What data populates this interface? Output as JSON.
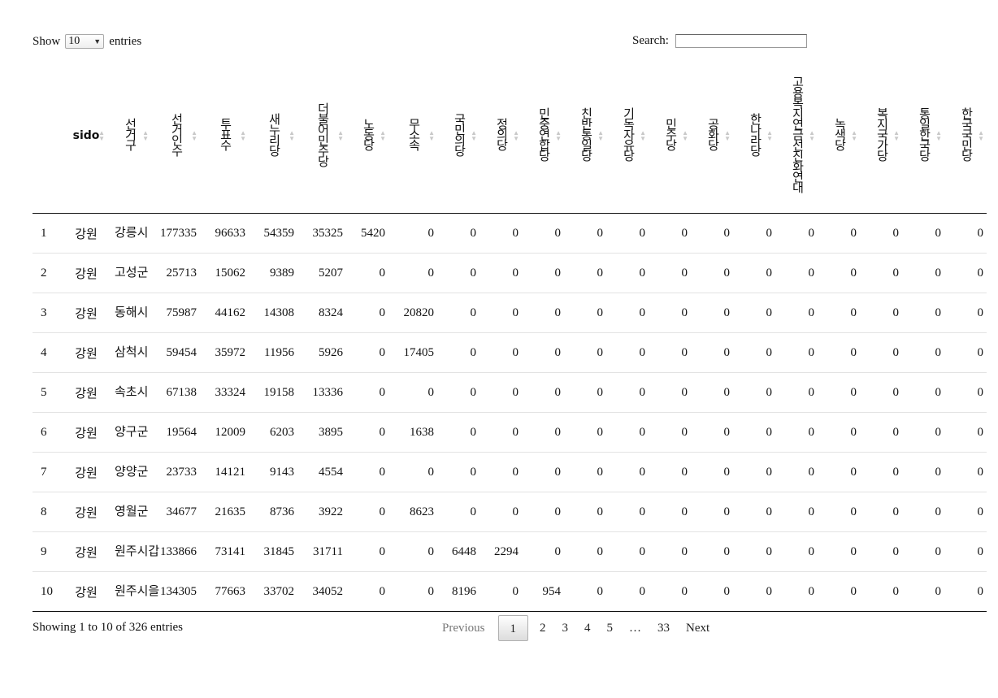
{
  "controls": {
    "show_label": "Show",
    "length_value": "10",
    "entries_label": "entries",
    "search_label": "Search:",
    "search_value": ""
  },
  "columns": [
    "",
    "sido",
    "선거구",
    "선거인수",
    "투표수",
    "새누리당",
    "더불어민주당",
    "노동당",
    "무소속",
    "국민의당",
    "정의당",
    "민중연합당",
    "친반통일당",
    "기독자유당",
    "민주당",
    "공화당",
    "한나라당",
    "고용복지연금선진화연대",
    "녹색당",
    "복지국가당",
    "통일한국당",
    "한국국민당"
  ],
  "rows": [
    [
      "1",
      "강원",
      "강릉시",
      "177335",
      "96633",
      "54359",
      "35325",
      "5420",
      "0",
      "0",
      "0",
      "0",
      "0",
      "0",
      "0",
      "0",
      "0",
      "0",
      "0",
      "0",
      "0",
      "0"
    ],
    [
      "2",
      "강원",
      "고성군",
      "25713",
      "15062",
      "9389",
      "5207",
      "0",
      "0",
      "0",
      "0",
      "0",
      "0",
      "0",
      "0",
      "0",
      "0",
      "0",
      "0",
      "0",
      "0",
      "0"
    ],
    [
      "3",
      "강원",
      "동해시",
      "75987",
      "44162",
      "14308",
      "8324",
      "0",
      "20820",
      "0",
      "0",
      "0",
      "0",
      "0",
      "0",
      "0",
      "0",
      "0",
      "0",
      "0",
      "0",
      "0"
    ],
    [
      "4",
      "강원",
      "삼척시",
      "59454",
      "35972",
      "11956",
      "5926",
      "0",
      "17405",
      "0",
      "0",
      "0",
      "0",
      "0",
      "0",
      "0",
      "0",
      "0",
      "0",
      "0",
      "0",
      "0"
    ],
    [
      "5",
      "강원",
      "속초시",
      "67138",
      "33324",
      "19158",
      "13336",
      "0",
      "0",
      "0",
      "0",
      "0",
      "0",
      "0",
      "0",
      "0",
      "0",
      "0",
      "0",
      "0",
      "0",
      "0"
    ],
    [
      "6",
      "강원",
      "양구군",
      "19564",
      "12009",
      "6203",
      "3895",
      "0",
      "1638",
      "0",
      "0",
      "0",
      "0",
      "0",
      "0",
      "0",
      "0",
      "0",
      "0",
      "0",
      "0",
      "0"
    ],
    [
      "7",
      "강원",
      "양양군",
      "23733",
      "14121",
      "9143",
      "4554",
      "0",
      "0",
      "0",
      "0",
      "0",
      "0",
      "0",
      "0",
      "0",
      "0",
      "0",
      "0",
      "0",
      "0",
      "0"
    ],
    [
      "8",
      "강원",
      "영월군",
      "34677",
      "21635",
      "8736",
      "3922",
      "0",
      "8623",
      "0",
      "0",
      "0",
      "0",
      "0",
      "0",
      "0",
      "0",
      "0",
      "0",
      "0",
      "0",
      "0"
    ],
    [
      "9",
      "강원",
      "원주시갑",
      "133866",
      "73141",
      "31845",
      "31711",
      "0",
      "0",
      "6448",
      "2294",
      "0",
      "0",
      "0",
      "0",
      "0",
      "0",
      "0",
      "0",
      "0",
      "0",
      "0"
    ],
    [
      "10",
      "강원",
      "원주시을",
      "134305",
      "77663",
      "33702",
      "34052",
      "0",
      "0",
      "8196",
      "0",
      "954",
      "0",
      "0",
      "0",
      "0",
      "0",
      "0",
      "0",
      "0",
      "0",
      "0"
    ]
  ],
  "footer": {
    "info": "Showing 1 to 10 of 326 entries",
    "previous": "Previous",
    "pages": [
      "1",
      "2",
      "3",
      "4",
      "5",
      "…",
      "33"
    ],
    "next": "Next"
  }
}
